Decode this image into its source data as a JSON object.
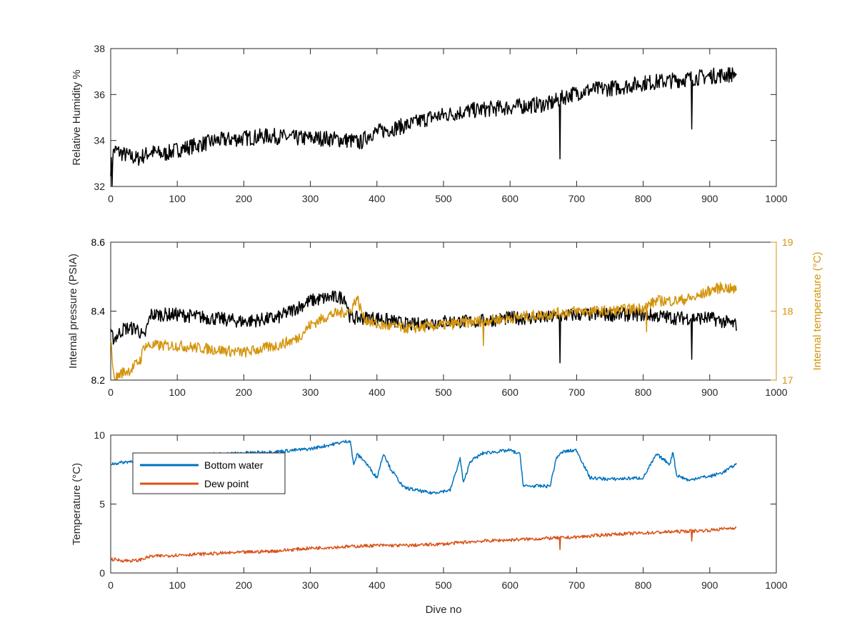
{
  "chart_data": [
    {
      "type": "line",
      "xlim": [
        0,
        1000
      ],
      "ylim": [
        32,
        38
      ],
      "xticks": [
        "0",
        "100",
        "200",
        "300",
        "400",
        "500",
        "600",
        "700",
        "800",
        "900",
        "1000"
      ],
      "yticks": [
        "32",
        "34",
        "36",
        "38"
      ],
      "xlabel": "",
      "ylabel": "Relative Humidity %",
      "grid": false,
      "series": [
        {
          "color": "#000000",
          "x": [
            0,
            5,
            20,
            40,
            60,
            80,
            100,
            130,
            160,
            200,
            240,
            280,
            320,
            360,
            375,
            390,
            420,
            450,
            480,
            500,
            540,
            580,
            620,
            660,
            675,
            690,
            720,
            760,
            800,
            840,
            870,
            900,
            940
          ],
          "y": [
            32.8,
            33.6,
            33.4,
            33.2,
            33.5,
            33.4,
            33.6,
            33.8,
            34.0,
            34.1,
            34.2,
            34.1,
            34.1,
            34.0,
            33.9,
            34.3,
            34.5,
            34.7,
            35.0,
            35.1,
            35.3,
            35.4,
            35.5,
            35.6,
            35.8,
            36.0,
            36.2,
            36.3,
            36.5,
            36.6,
            36.7,
            36.8,
            36.9
          ],
          "noise": 0.35,
          "spikes": [
            {
              "x": 675,
              "y": 33.2
            },
            {
              "x": 873,
              "y": 34.5
            },
            {
              "x": 2,
              "y": 32.0
            }
          ]
        }
      ]
    },
    {
      "type": "line",
      "xlim": [
        0,
        1000
      ],
      "ylim": [
        8.2,
        8.6
      ],
      "y2lim": [
        17,
        19
      ],
      "xticks": [
        "0",
        "100",
        "200",
        "300",
        "400",
        "500",
        "600",
        "700",
        "800",
        "900",
        "1000"
      ],
      "yticks": [
        "8.2",
        "8.4",
        "8.6"
      ],
      "y2ticks": [
        "17",
        "18",
        "19"
      ],
      "ylabel": "Internal pressure (PSIA)",
      "y2label": "Internal temperature (°C)",
      "grid": false,
      "series": [
        {
          "axis": "left",
          "color": "#000000",
          "x": [
            0,
            5,
            20,
            40,
            50,
            60,
            100,
            150,
            200,
            250,
            280,
            300,
            330,
            352,
            360,
            380,
            400,
            450,
            500,
            550,
            600,
            650,
            700,
            750,
            800,
            850,
            900,
            940
          ],
          "y": [
            8.33,
            8.32,
            8.35,
            8.35,
            8.32,
            8.39,
            8.39,
            8.38,
            8.37,
            8.38,
            8.41,
            8.43,
            8.44,
            8.44,
            8.38,
            8.38,
            8.38,
            8.36,
            8.37,
            8.37,
            8.38,
            8.38,
            8.39,
            8.39,
            8.39,
            8.38,
            8.38,
            8.36
          ],
          "noise": 0.02,
          "spikes": [
            {
              "x": 675,
              "y": 8.25
            },
            {
              "x": 873,
              "y": 8.26
            }
          ]
        },
        {
          "axis": "right",
          "color": "#d4940c",
          "x": [
            0,
            5,
            15,
            30,
            45,
            50,
            100,
            150,
            200,
            250,
            280,
            300,
            330,
            360,
            370,
            380,
            400,
            450,
            500,
            550,
            600,
            650,
            700,
            750,
            800,
            820,
            850,
            880,
            900,
            920,
            940
          ],
          "y": [
            17.6,
            17.0,
            17.1,
            17.15,
            17.3,
            17.5,
            17.5,
            17.45,
            17.4,
            17.5,
            17.6,
            17.8,
            17.95,
            18.0,
            18.2,
            17.9,
            17.8,
            17.75,
            17.8,
            17.85,
            17.9,
            17.95,
            18.0,
            18.0,
            18.05,
            18.15,
            18.15,
            18.2,
            18.3,
            18.35,
            18.3
          ],
          "noise": 0.08,
          "spikes": [
            {
              "x": 560,
              "y": 17.5
            },
            {
              "x": 805,
              "y": 17.7
            }
          ]
        }
      ]
    },
    {
      "type": "line",
      "xlim": [
        0,
        1000
      ],
      "ylim": [
        0,
        10
      ],
      "xticks": [
        "0",
        "100",
        "200",
        "300",
        "400",
        "500",
        "600",
        "700",
        "800",
        "900",
        "1000"
      ],
      "yticks": [
        "0",
        "5",
        "10"
      ],
      "xlabel": "Dive no",
      "ylabel": "Temperature (°C)",
      "grid": false,
      "legend": "top-left",
      "series": [
        {
          "name": "Bottom water",
          "color": "#0072bd",
          "x": [
            0,
            30,
            60,
            100,
            150,
            200,
            250,
            300,
            330,
            360,
            365,
            370,
            380,
            400,
            410,
            420,
            440,
            460,
            480,
            510,
            525,
            530,
            540,
            560,
            600,
            615,
            620,
            640,
            660,
            670,
            680,
            700,
            720,
            750,
            800,
            820,
            840,
            845,
            850,
            870,
            880,
            900,
            920,
            940
          ],
          "y": [
            7.9,
            8.1,
            8.5,
            8.5,
            8.6,
            8.7,
            8.8,
            9.0,
            9.3,
            9.6,
            7.8,
            8.6,
            8.2,
            6.9,
            8.7,
            7.6,
            6.2,
            6.0,
            5.8,
            6.0,
            8.3,
            6.5,
            8.1,
            8.7,
            8.9,
            8.6,
            6.3,
            6.3,
            6.3,
            8.4,
            8.8,
            8.9,
            6.9,
            6.8,
            6.9,
            8.6,
            7.9,
            8.8,
            7.1,
            6.7,
            6.9,
            7.0,
            7.3,
            7.9
          ],
          "noise": 0.12,
          "spikes": []
        },
        {
          "name": "Dew point",
          "color": "#d95319",
          "x": [
            0,
            20,
            40,
            60,
            100,
            150,
            200,
            250,
            300,
            350,
            400,
            450,
            500,
            550,
            600,
            650,
            700,
            750,
            800,
            850,
            900,
            940
          ],
          "y": [
            1.0,
            0.9,
            0.9,
            1.2,
            1.3,
            1.4,
            1.5,
            1.6,
            1.8,
            1.9,
            2.0,
            2.0,
            2.1,
            2.3,
            2.4,
            2.5,
            2.6,
            2.8,
            2.9,
            3.0,
            3.1,
            3.3
          ],
          "noise": 0.12,
          "spikes": [
            {
              "x": 675,
              "y": 1.7
            },
            {
              "x": 873,
              "y": 2.3
            }
          ]
        }
      ]
    }
  ]
}
